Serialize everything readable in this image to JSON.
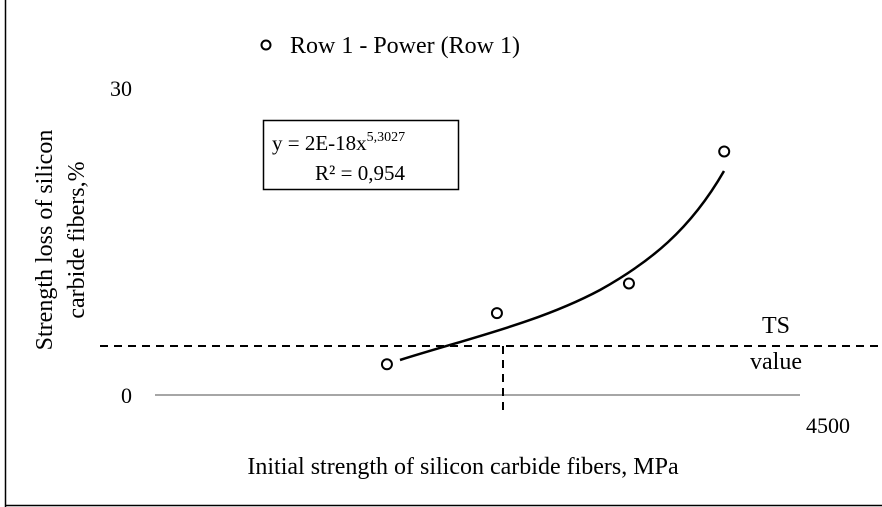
{
  "chart_data": {
    "type": "scatter",
    "x_label": "Initial strength of silicon carbide fibers, MPa",
    "y_label": [
      "Strength loss of silicon",
      "carbide fibers,%"
    ],
    "series": [
      {
        "name": "Row 1 - Power (Row 1)",
        "color": "#000000",
        "x": [
          2796,
          3221,
          3731,
          4099
        ],
        "values": [
          3.0,
          8.0,
          10.9,
          23.8
        ]
      }
    ],
    "xlim": [
      1900,
      4500
    ],
    "xticks": [
      4500
    ],
    "ylim": [
      0,
      30
    ],
    "yticks": [
      0,
      30
    ],
    "equation": {
      "text": "y = 2E-18x",
      "exponent": "5,3027",
      "r2": "R² = 0,954"
    },
    "annotation": [
      "TS",
      "value"
    ]
  }
}
